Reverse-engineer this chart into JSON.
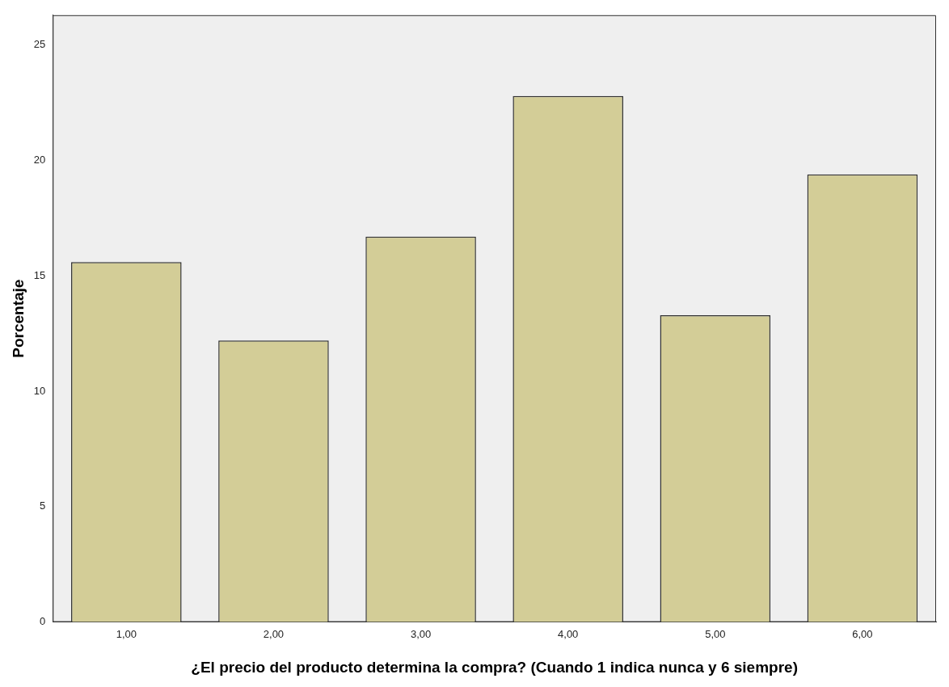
{
  "chart_data": {
    "type": "bar",
    "xlabel": "¿El precio del producto determina la compra? (Cuando 1 indica nunca y 6 siempre)",
    "ylabel": "Porcentaje",
    "categories": [
      "1,00",
      "2,00",
      "3,00",
      "4,00",
      "5,00",
      "6,00"
    ],
    "values": [
      15.6,
      12.2,
      16.7,
      22.8,
      13.3,
      19.4
    ],
    "color": "#d3cd97",
    "ylim": [
      0,
      26.3
    ],
    "yticks": [
      0,
      5,
      10,
      15,
      20,
      25
    ],
    "grid": false,
    "legend": false
  }
}
